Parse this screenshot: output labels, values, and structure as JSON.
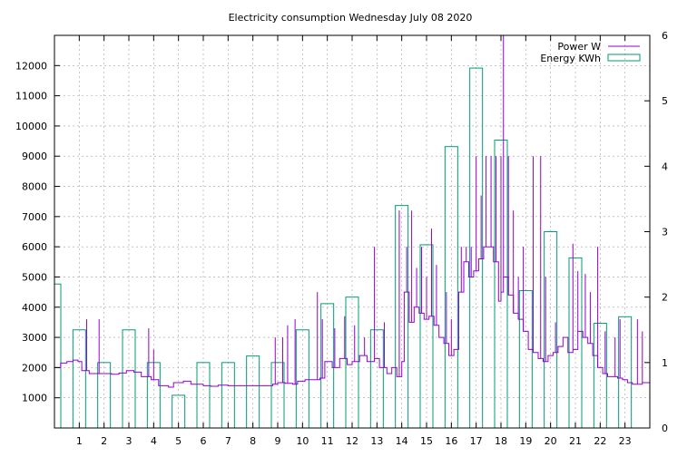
{
  "chart_data": {
    "type": "mixed",
    "title": "Electricity consumption Wednesday July 08 2020",
    "xlabel": "",
    "ylabel": "",
    "y2label": "",
    "grid": true,
    "legend_position": "top-right",
    "xlim": [
      0,
      24
    ],
    "ylim": [
      0,
      13000
    ],
    "y2lim": [
      0,
      6
    ],
    "x_ticks": [
      1,
      2,
      3,
      4,
      5,
      6,
      7,
      8,
      9,
      10,
      11,
      12,
      13,
      14,
      15,
      16,
      17,
      18,
      19,
      20,
      21,
      22,
      23
    ],
    "y_ticks": [
      1000,
      2000,
      3000,
      4000,
      5000,
      6000,
      7000,
      8000,
      9000,
      10000,
      11000,
      12000
    ],
    "y2_ticks": [
      0,
      1,
      2,
      3,
      4,
      5,
      6
    ],
    "energy": {
      "name": "Energy KWh",
      "type": "bar",
      "color": "#009e73",
      "hours": [
        0,
        1,
        2,
        3,
        4,
        5,
        6,
        7,
        8,
        9,
        10,
        11,
        12,
        13,
        14,
        15,
        16,
        17,
        18,
        19,
        20,
        21,
        22,
        23
      ],
      "values": [
        2.2,
        1.5,
        1.0,
        1.5,
        1.0,
        0.5,
        1.0,
        1.0,
        1.1,
        1.0,
        1.5,
        1.9,
        2.0,
        1.5,
        3.4,
        2.8,
        4.3,
        5.5,
        4.4,
        2.1,
        3.0,
        2.6,
        1.6,
        1.7
      ]
    },
    "power": {
      "name": "Power W",
      "type": "line",
      "color": "#9400d3",
      "points": [
        [
          0.0,
          2000
        ],
        [
          0.25,
          2150
        ],
        [
          0.5,
          2200
        ],
        [
          0.75,
          2250
        ],
        [
          0.95,
          2200
        ],
        [
          1.1,
          1900
        ],
        [
          1.4,
          1800
        ],
        [
          1.8,
          1800
        ],
        [
          2.3,
          1780
        ],
        [
          2.6,
          1820
        ],
        [
          2.9,
          1900
        ],
        [
          3.2,
          1850
        ],
        [
          3.5,
          1700
        ],
        [
          3.9,
          1600
        ],
        [
          4.2,
          1400
        ],
        [
          4.6,
          1350
        ],
        [
          4.8,
          1500
        ],
        [
          5.2,
          1550
        ],
        [
          5.5,
          1450
        ],
        [
          6.0,
          1400
        ],
        [
          6.3,
          1380
        ],
        [
          6.6,
          1420
        ],
        [
          7.0,
          1400
        ],
        [
          7.5,
          1400
        ],
        [
          8.0,
          1400
        ],
        [
          8.5,
          1400
        ],
        [
          8.8,
          1450
        ],
        [
          9.0,
          1500
        ],
        [
          9.3,
          1480
        ],
        [
          9.6,
          1450
        ],
        [
          9.8,
          1550
        ],
        [
          10.1,
          1600
        ],
        [
          10.4,
          1600
        ],
        [
          10.7,
          1650
        ],
        [
          10.9,
          2200
        ],
        [
          11.2,
          2000
        ],
        [
          11.5,
          2300
        ],
        [
          11.8,
          2100
        ],
        [
          12.0,
          2200
        ],
        [
          12.3,
          2400
        ],
        [
          12.6,
          2200
        ],
        [
          12.9,
          2300
        ],
        [
          13.1,
          2000
        ],
        [
          13.4,
          1800
        ],
        [
          13.6,
          2000
        ],
        [
          13.8,
          1700
        ],
        [
          14.0,
          2200
        ],
        [
          14.1,
          4500
        ],
        [
          14.3,
          3500
        ],
        [
          14.5,
          4000
        ],
        [
          14.7,
          3800
        ],
        [
          14.9,
          3600
        ],
        [
          15.1,
          3700
        ],
        [
          15.3,
          3400
        ],
        [
          15.5,
          3000
        ],
        [
          15.7,
          2800
        ],
        [
          15.9,
          2400
        ],
        [
          16.1,
          2600
        ],
        [
          16.3,
          4500
        ],
        [
          16.5,
          5500
        ],
        [
          16.7,
          5000
        ],
        [
          16.9,
          5200
        ],
        [
          17.1,
          5600
        ],
        [
          17.3,
          6000
        ],
        [
          17.5,
          6000
        ],
        [
          17.7,
          5500
        ],
        [
          17.9,
          4200
        ],
        [
          18.0,
          4500
        ],
        [
          18.1,
          5000
        ],
        [
          18.3,
          4400
        ],
        [
          18.5,
          3800
        ],
        [
          18.7,
          3600
        ],
        [
          18.9,
          3200
        ],
        [
          19.1,
          2600
        ],
        [
          19.3,
          2500
        ],
        [
          19.5,
          2300
        ],
        [
          19.7,
          2200
        ],
        [
          19.9,
          2400
        ],
        [
          20.1,
          2500
        ],
        [
          20.3,
          2700
        ],
        [
          20.5,
          3000
        ],
        [
          20.7,
          2500
        ],
        [
          20.9,
          2600
        ],
        [
          21.1,
          3200
        ],
        [
          21.3,
          3000
        ],
        [
          21.5,
          2800
        ],
        [
          21.7,
          2400
        ],
        [
          21.9,
          2000
        ],
        [
          22.1,
          1800
        ],
        [
          22.3,
          1700
        ],
        [
          22.5,
          1700
        ],
        [
          22.7,
          1650
        ],
        [
          22.9,
          1600
        ],
        [
          23.1,
          1500
        ],
        [
          23.3,
          1450
        ],
        [
          23.5,
          1450
        ],
        [
          23.7,
          1500
        ],
        [
          24.0,
          1650
        ]
      ],
      "spikes": [
        [
          1.3,
          3600
        ],
        [
          1.8,
          3600
        ],
        [
          3.8,
          3300
        ],
        [
          4.0,
          2600
        ],
        [
          8.9,
          3000
        ],
        [
          9.2,
          3000
        ],
        [
          9.4,
          3400
        ],
        [
          9.7,
          3600
        ],
        [
          10.6,
          4500
        ],
        [
          10.8,
          3600
        ],
        [
          11.3,
          3300
        ],
        [
          11.7,
          3700
        ],
        [
          12.1,
          3400
        ],
        [
          12.5,
          3000
        ],
        [
          12.9,
          6000
        ],
        [
          13.3,
          3500
        ],
        [
          13.9,
          7200
        ],
        [
          14.2,
          6000
        ],
        [
          14.4,
          7200
        ],
        [
          14.6,
          5300
        ],
        [
          14.8,
          6000
        ],
        [
          15.0,
          5000
        ],
        [
          15.2,
          6600
        ],
        [
          15.4,
          5400
        ],
        [
          15.8,
          4500
        ],
        [
          16.0,
          3600
        ],
        [
          16.4,
          6000
        ],
        [
          16.6,
          6000
        ],
        [
          16.8,
          6000
        ],
        [
          17.0,
          9000
        ],
        [
          17.2,
          7700
        ],
        [
          17.4,
          9000
        ],
        [
          17.6,
          9000
        ],
        [
          17.8,
          9000
        ],
        [
          18.0,
          9000
        ],
        [
          18.1,
          13000
        ],
        [
          18.3,
          9000
        ],
        [
          18.5,
          7200
        ],
        [
          18.7,
          5000
        ],
        [
          18.9,
          6000
        ],
        [
          19.3,
          9000
        ],
        [
          19.6,
          9000
        ],
        [
          19.8,
          5000
        ],
        [
          20.2,
          3500
        ],
        [
          20.6,
          3000
        ],
        [
          20.9,
          6100
        ],
        [
          21.1,
          5200
        ],
        [
          21.4,
          5100
        ],
        [
          21.6,
          4500
        ],
        [
          21.9,
          6000
        ],
        [
          22.2,
          3200
        ],
        [
          22.6,
          3000
        ],
        [
          22.8,
          3600
        ],
        [
          23.5,
          3600
        ],
        [
          23.7,
          3200
        ]
      ]
    }
  }
}
